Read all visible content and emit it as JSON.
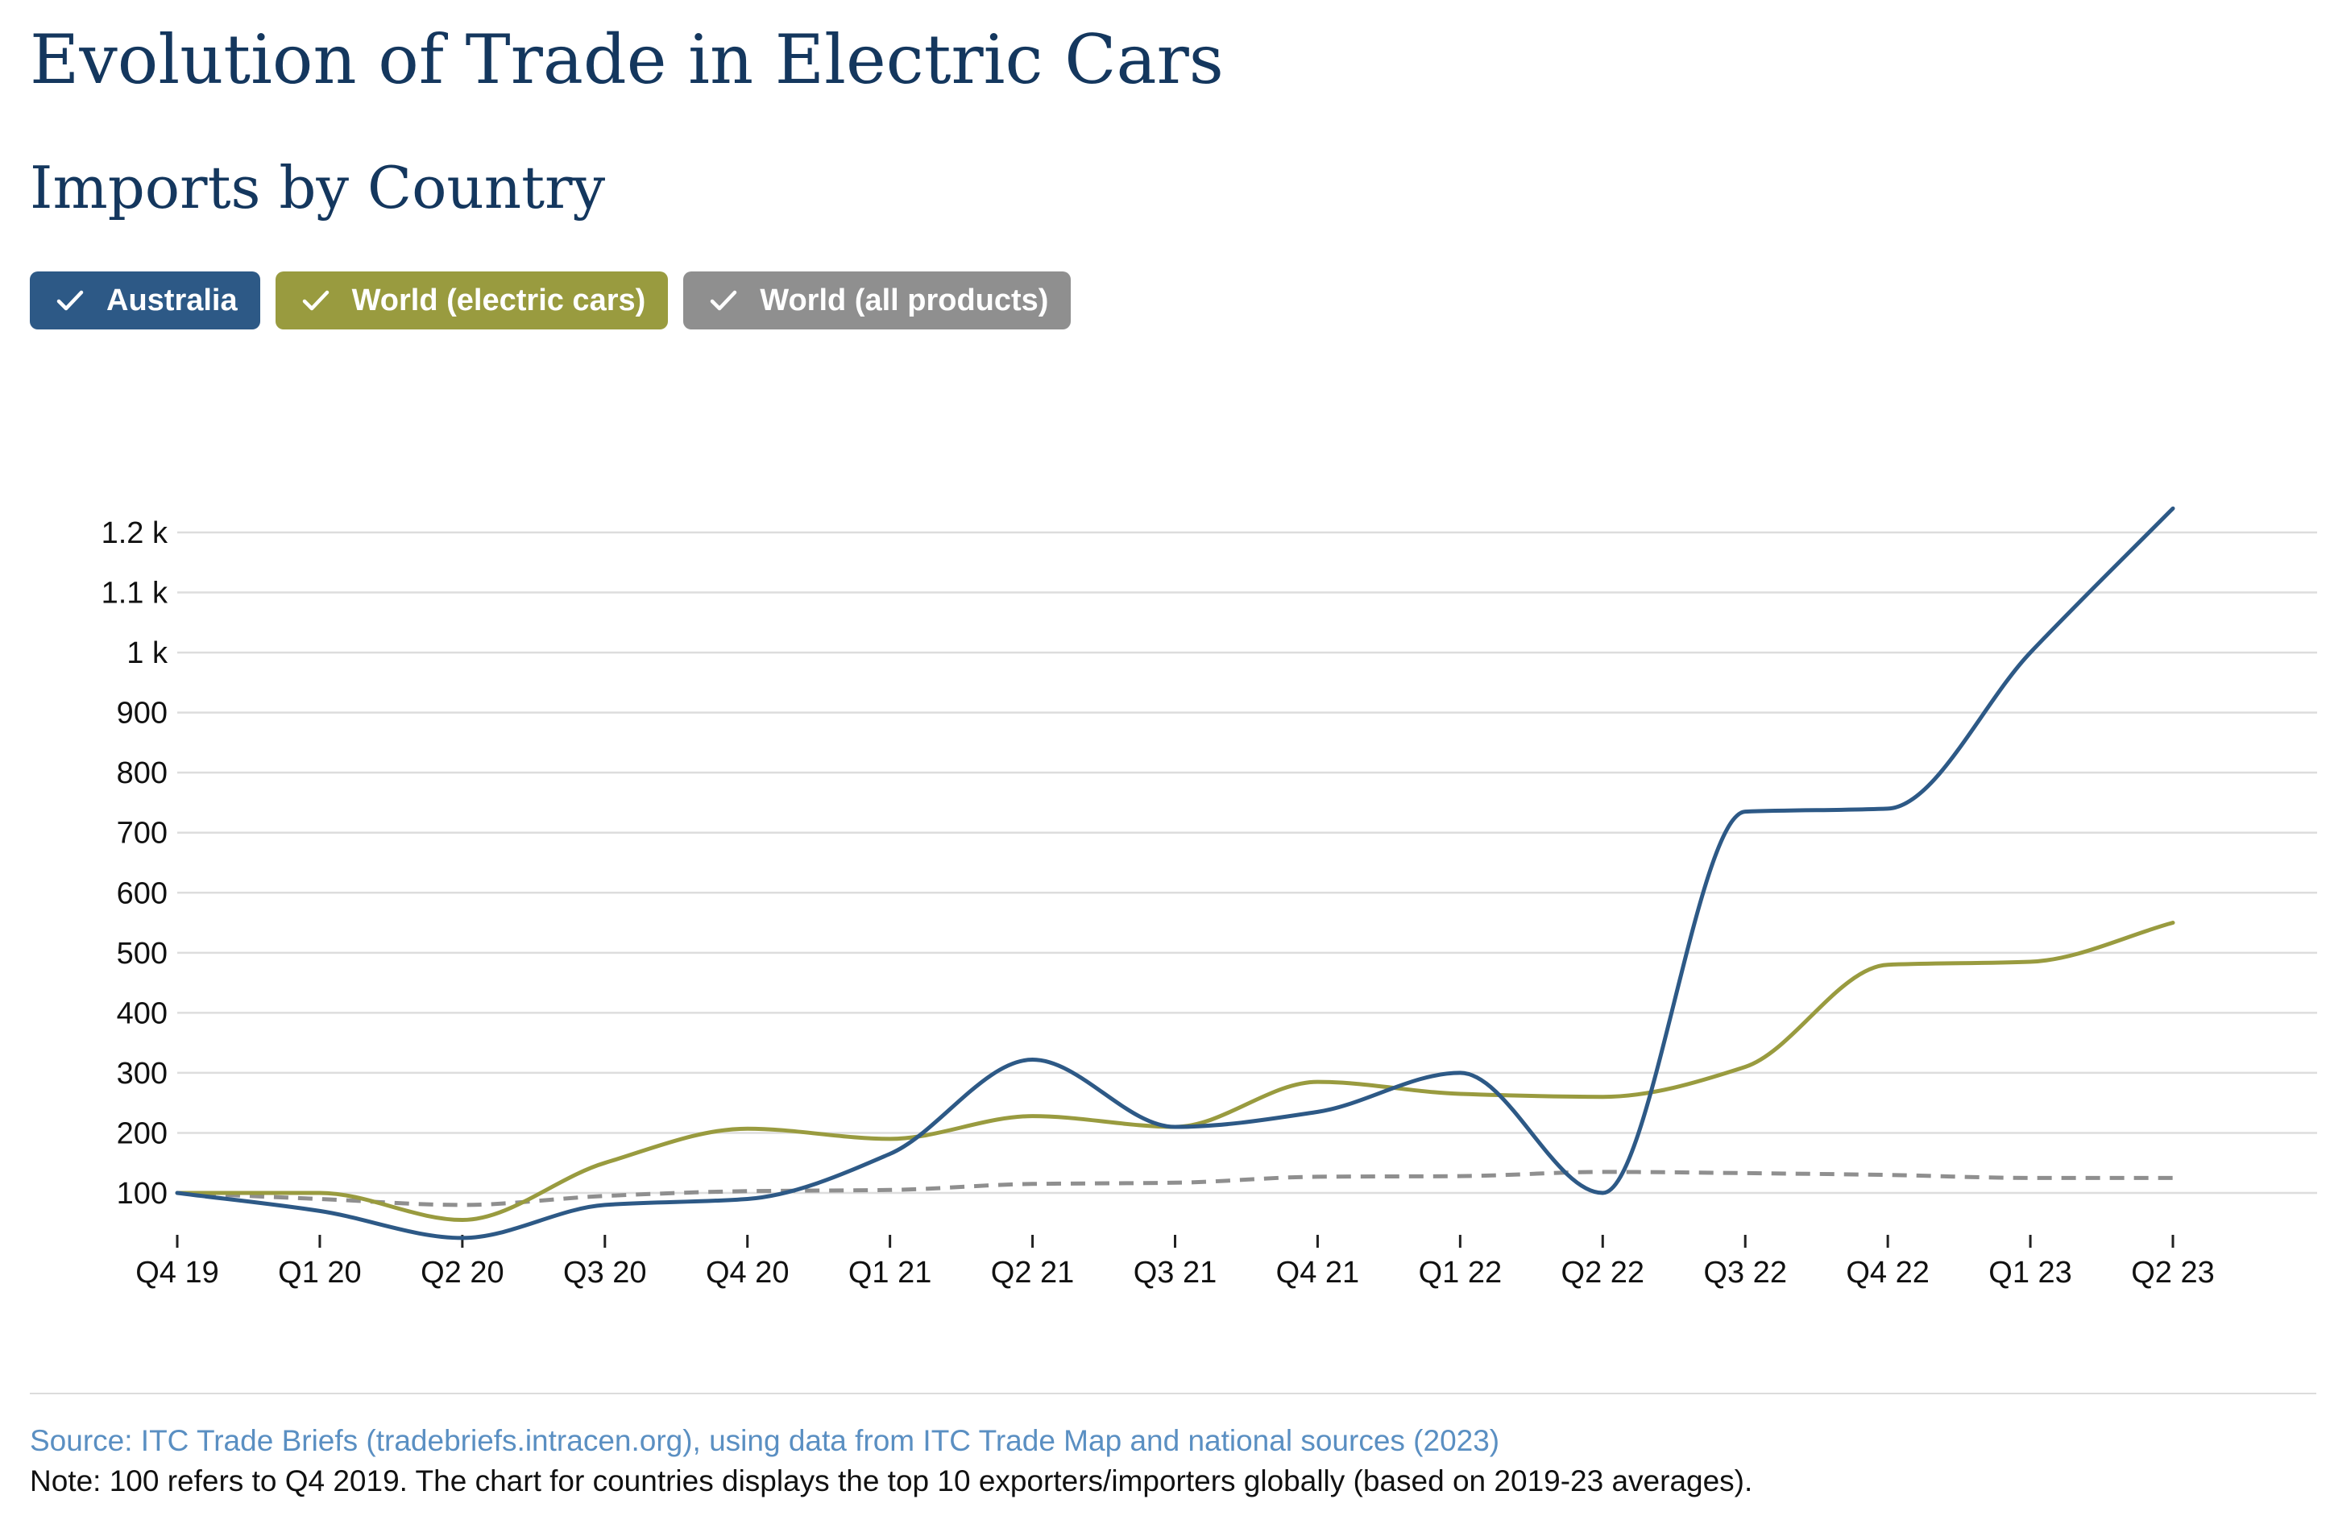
{
  "header": {
    "title": "Evolution of Trade in Electric Cars",
    "subtitle": "Imports by Country"
  },
  "legend": {
    "items": [
      {
        "label": "Australia",
        "color": "#2d5986",
        "icon": "check-icon"
      },
      {
        "label": "World (electric cars)",
        "color": "#999b3f",
        "icon": "check-icon"
      },
      {
        "label": "World (all products)",
        "color": "#8f8f8f",
        "icon": "check-icon"
      }
    ]
  },
  "chart_data": {
    "type": "line",
    "categories": [
      "Q4 19",
      "Q1 20",
      "Q2 20",
      "Q3 20",
      "Q4 20",
      "Q1 21",
      "Q2 21",
      "Q3 21",
      "Q4 21",
      "Q1 22",
      "Q2 22",
      "Q3 22",
      "Q4 22",
      "Q1 23",
      "Q2 23"
    ],
    "y_ticks": [
      100,
      200,
      300,
      400,
      500,
      600,
      700,
      800,
      900,
      1000,
      1100,
      1200
    ],
    "y_tick_labels": [
      "100",
      "200",
      "300",
      "400",
      "500",
      "600",
      "700",
      "800",
      "900",
      "1 k",
      "1.1 k",
      "1.2 k"
    ],
    "ylim": [
      25,
      1250
    ],
    "grid": true,
    "series": [
      {
        "name": "Australia",
        "color": "#2d5986",
        "dashed": false,
        "values": [
          100,
          70,
          25,
          80,
          90,
          165,
          322,
          210,
          235,
          300,
          100,
          735,
          740,
          1000,
          1240
        ]
      },
      {
        "name": "World (electric cars)",
        "color": "#999b3f",
        "dashed": false,
        "values": [
          100,
          100,
          55,
          150,
          207,
          190,
          228,
          210,
          285,
          265,
          260,
          310,
          480,
          485,
          550
        ]
      },
      {
        "name": "World (all products)",
        "color": "#8f8f8f",
        "dashed": true,
        "values": [
          100,
          90,
          80,
          95,
          103,
          105,
          115,
          117,
          127,
          128,
          135,
          133,
          130,
          125,
          125
        ]
      }
    ]
  },
  "footer": {
    "source": "Source: ITC Trade Briefs (tradebriefs.intracen.org), using data from ITC Trade Map and national sources (2023)",
    "note": "Note: 100 refers to Q4 2019. The chart for countries displays the top 10 exporters/importers globally (based on 2019-23 averages)."
  }
}
